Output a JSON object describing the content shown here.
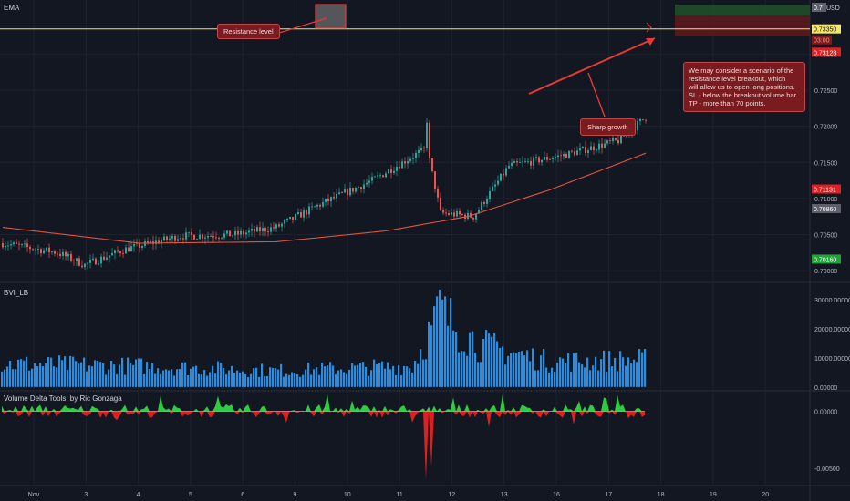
{
  "panels": {
    "main_label": "EMA",
    "volume_label": "BVI_LB",
    "delta_label": "Volume Delta Tools, by Ric Gonzaga"
  },
  "annotations": {
    "resistance": "Resistance level",
    "growth": "Sharp growth",
    "scenario_lines": [
      "We may consider a scenario of the",
      "resistance level breakout, which",
      "will allow us to open long positions.",
      "SL - below the breakout volume bar.",
      "TP - more than 70 points."
    ]
  },
  "price_tags": {
    "top": "0.7",
    "top_unit": "USD",
    "current": "0.73350",
    "countdown": "03:00",
    "red_top": "0.73128",
    "red_mid": "0.71131",
    "gray": "0.70860",
    "green": "0.70160"
  },
  "colors": {
    "up": "#26a69a",
    "down": "#ef5350",
    "ema": "#e0533d",
    "volume": "#2a8de0",
    "delta_up": "#2ecc40",
    "delta_down": "#e02020",
    "resistance": "#f5e663",
    "callout": "#7a1c1f"
  },
  "chart_data": [
    {
      "type": "candlestick",
      "ylim": [
        0.6985,
        0.7375
      ],
      "yticks": [
        "0.73000",
        "0.72500",
        "0.72000",
        "0.71500",
        "0.71000",
        "0.70500",
        "0.70000"
      ],
      "ytick_values": [
        0.73,
        0.725,
        0.72,
        0.715,
        0.71,
        0.705,
        0.7
      ],
      "resistance_level": 0.7335,
      "xlabels": [
        "Nov",
        "3",
        "4",
        "5",
        "6",
        "9",
        "10",
        "11",
        "12",
        "13",
        "16",
        "17",
        "18",
        "19",
        "20"
      ],
      "series": [
        {
          "name": "close",
          "anchors": [
            [
              0,
              0.7038
            ],
            [
              20,
              0.7025
            ],
            [
              30,
              0.7008
            ],
            [
              45,
              0.703
            ],
            [
              65,
              0.7048
            ],
            [
              85,
              0.705
            ],
            [
              100,
              0.706
            ],
            [
              115,
              0.709
            ],
            [
              135,
              0.7125
            ],
            [
              155,
              0.717
            ],
            [
              160,
              0.708
            ],
            [
              172,
              0.7075
            ],
            [
              185,
              0.7145
            ],
            [
              205,
              0.716
            ],
            [
              225,
              0.718
            ],
            [
              245,
              0.7245
            ],
            [
              262,
              0.7285
            ],
            [
              280,
              0.7278
            ],
            [
              300,
              0.7282
            ],
            [
              320,
              0.7288
            ],
            [
              340,
              0.729
            ],
            [
              355,
              0.73
            ],
            [
              362,
              0.7322
            ],
            [
              370,
              0.7295
            ],
            [
              380,
              0.729
            ],
            [
              400,
              0.7283
            ],
            [
              420,
              0.7285
            ],
            [
              440,
              0.729
            ],
            [
              455,
              0.7305
            ],
            [
              470,
              0.728
            ],
            [
              490,
              0.7285
            ],
            [
              510,
              0.7288
            ],
            [
              530,
              0.7272
            ],
            [
              545,
              0.726
            ],
            [
              560,
              0.7245
            ],
            [
              575,
              0.725
            ],
            [
              590,
              0.7262
            ],
            [
              605,
              0.7265
            ],
            [
              620,
              0.7285
            ],
            [
              640,
              0.729
            ],
            [
              660,
              0.7315
            ],
            [
              680,
              0.731
            ],
            [
              700,
              0.7322
            ],
            [
              708,
              0.7318
            ]
          ]
        },
        {
          "name": "EMA",
          "anchors": [
            [
              0,
              0.706
            ],
            [
              50,
              0.7038
            ],
            [
              100,
              0.704
            ],
            [
              140,
              0.7055
            ],
            [
              170,
              0.7075
            ],
            [
              200,
              0.7112
            ],
            [
              240,
              0.717
            ],
            [
              270,
              0.7212
            ],
            [
              300,
              0.7245
            ],
            [
              340,
              0.7268
            ],
            [
              380,
              0.7279
            ],
            [
              420,
              0.7283
            ],
            [
              460,
              0.7285
            ],
            [
              500,
              0.7283
            ],
            [
              540,
              0.7278
            ],
            [
              580,
              0.727
            ],
            [
              620,
              0.7278
            ],
            [
              660,
              0.729
            ],
            [
              708,
              0.73
            ]
          ]
        }
      ]
    },
    {
      "type": "bar",
      "name": "BVI_LB",
      "ylim": [
        -1000,
        36000
      ],
      "yticks": [
        "30000.00000",
        "20000.00000",
        "10000.00000",
        "0.00000"
      ],
      "ytick_values": [
        30000,
        20000,
        10000,
        0
      ],
      "envelope": [
        [
          0,
          10000
        ],
        [
          50,
          9000
        ],
        [
          100,
          7000
        ],
        [
          150,
          9000
        ],
        [
          160,
          32000
        ],
        [
          175,
          18000
        ],
        [
          200,
          11000
        ],
        [
          250,
          12000
        ],
        [
          300,
          11000
        ],
        [
          360,
          15000
        ],
        [
          380,
          12000
        ],
        [
          420,
          11000
        ],
        [
          500,
          9000
        ],
        [
          560,
          8500
        ],
        [
          600,
          8500
        ],
        [
          652,
          11000
        ],
        [
          670,
          9500
        ],
        [
          708,
          8500
        ]
      ]
    },
    {
      "type": "area",
      "name": "Volume Delta",
      "ylim": [
        -0.0065,
        0.0018
      ],
      "yticks": [
        "0.00000",
        "-0.00500"
      ],
      "ytick_values": [
        0,
        -0.005
      ]
    }
  ]
}
